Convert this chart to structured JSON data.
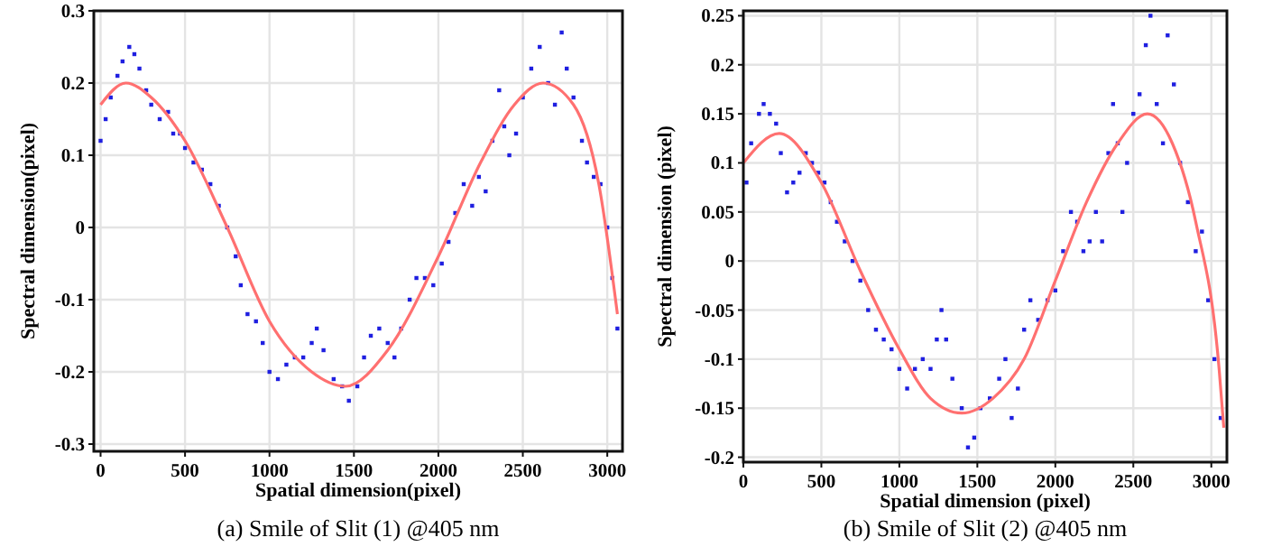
{
  "chart_data": [
    {
      "type": "scatter",
      "title": "(a) Smile of Slit (1) @405 nm",
      "xlabel": "Spatial dimension(pixel)",
      "ylabel": "Spectral dimension(pixel)",
      "xlim": [
        -40,
        3090
      ],
      "ylim": [
        -0.31,
        0.3
      ],
      "xticks": [
        0,
        500,
        1000,
        1500,
        2000,
        2500,
        3000
      ],
      "yticks": [
        -0.3,
        -0.2,
        -0.1,
        0,
        0.1,
        0.2,
        0.3
      ],
      "grid": true,
      "series": [
        {
          "marker": "square",
          "color": "#1f1fe0",
          "x": [
            0,
            30,
            60,
            100,
            130,
            170,
            200,
            230,
            270,
            300,
            350,
            400,
            430,
            470,
            500,
            550,
            600,
            650,
            700,
            750,
            800,
            830,
            870,
            920,
            960,
            1000,
            1050,
            1100,
            1150,
            1200,
            1250,
            1280,
            1320,
            1380,
            1430,
            1470,
            1520,
            1560,
            1600,
            1650,
            1700,
            1740,
            1780,
            1830,
            1870,
            1920,
            1970,
            2020,
            2060,
            2100,
            2150,
            2200,
            2240,
            2280,
            2320,
            2360,
            2390,
            2420,
            2460,
            2500,
            2550,
            2600,
            2650,
            2690,
            2730,
            2760,
            2800,
            2850,
            2880,
            2920,
            2960,
            3000,
            3030,
            3060
          ],
          "values": [
            0.12,
            0.15,
            0.18,
            0.21,
            0.23,
            0.25,
            0.24,
            0.22,
            0.19,
            0.17,
            0.15,
            0.16,
            0.13,
            0.13,
            0.11,
            0.09,
            0.08,
            0.06,
            0.03,
            0.0,
            -0.04,
            -0.08,
            -0.12,
            -0.13,
            -0.16,
            -0.2,
            -0.21,
            -0.19,
            -0.18,
            -0.18,
            -0.16,
            -0.14,
            -0.17,
            -0.21,
            -0.22,
            -0.24,
            -0.22,
            -0.18,
            -0.15,
            -0.14,
            -0.16,
            -0.18,
            -0.14,
            -0.1,
            -0.07,
            -0.07,
            -0.08,
            -0.05,
            -0.02,
            0.02,
            0.06,
            0.03,
            0.07,
            0.05,
            0.12,
            0.19,
            0.14,
            0.1,
            0.13,
            0.18,
            0.22,
            0.25,
            0.2,
            0.17,
            0.27,
            0.22,
            0.18,
            0.12,
            0.09,
            0.07,
            0.06,
            0.0,
            -0.07,
            -0.14
          ]
        },
        {
          "type": "line",
          "marker": "none",
          "line_style": "solid",
          "color": "#ff7070",
          "x": [
            0,
            150,
            300,
            500,
            750,
            1000,
            1250,
            1450,
            1700,
            2000,
            2250,
            2450,
            2620,
            2800,
            2950,
            3060
          ],
          "values": [
            0.17,
            0.2,
            0.18,
            0.12,
            0.0,
            -0.13,
            -0.2,
            -0.22,
            -0.17,
            -0.04,
            0.09,
            0.17,
            0.2,
            0.17,
            0.06,
            -0.12
          ]
        }
      ]
    },
    {
      "type": "scatter",
      "title": "(b) Smile of Slit (2) @405 nm",
      "xlabel": "Spatial dimension (pixel)",
      "ylabel": "Spectral dimension (pixel)",
      "xlim": [
        0,
        3100
      ],
      "ylim": [
        -0.205,
        0.255
      ],
      "xticks": [
        0,
        500,
        1000,
        1500,
        2000,
        2500,
        3000
      ],
      "yticks": [
        -0.2,
        -0.15,
        -0.1,
        -0.05,
        0,
        0.05,
        0.1,
        0.15,
        0.2,
        0.25
      ],
      "grid": true,
      "series": [
        {
          "marker": "square",
          "color": "#1f1fe0",
          "x": [
            20,
            50,
            100,
            130,
            170,
            210,
            240,
            280,
            320,
            360,
            400,
            440,
            480,
            520,
            560,
            600,
            650,
            700,
            750,
            800,
            850,
            900,
            950,
            1000,
            1050,
            1100,
            1150,
            1200,
            1240,
            1270,
            1300,
            1340,
            1400,
            1440,
            1480,
            1520,
            1580,
            1640,
            1680,
            1720,
            1760,
            1800,
            1840,
            1890,
            1950,
            2000,
            2050,
            2100,
            2140,
            2180,
            2220,
            2260,
            2300,
            2340,
            2370,
            2400,
            2430,
            2460,
            2500,
            2540,
            2580,
            2610,
            2650,
            2690,
            2720,
            2760,
            2800,
            2850,
            2900,
            2940,
            2980,
            3020,
            3060
          ],
          "values": [
            0.08,
            0.12,
            0.15,
            0.16,
            0.15,
            0.14,
            0.11,
            0.07,
            0.08,
            0.09,
            0.11,
            0.1,
            0.09,
            0.08,
            0.06,
            0.04,
            0.02,
            0.0,
            -0.02,
            -0.05,
            -0.07,
            -0.08,
            -0.09,
            -0.11,
            -0.13,
            -0.11,
            -0.1,
            -0.11,
            -0.08,
            -0.05,
            -0.08,
            -0.12,
            -0.15,
            -0.19,
            -0.18,
            -0.15,
            -0.14,
            -0.12,
            -0.1,
            -0.16,
            -0.13,
            -0.07,
            -0.04,
            -0.06,
            -0.04,
            -0.03,
            0.01,
            0.05,
            0.04,
            0.01,
            0.02,
            0.05,
            0.02,
            0.11,
            0.16,
            0.12,
            0.05,
            0.1,
            0.15,
            0.17,
            0.22,
            0.25,
            0.16,
            0.12,
            0.23,
            0.18,
            0.1,
            0.06,
            0.01,
            0.03,
            -0.04,
            -0.1,
            -0.16
          ]
        },
        {
          "type": "line",
          "marker": "none",
          "line_style": "solid",
          "color": "#ff7070",
          "x": [
            0,
            230,
            500,
            750,
            1000,
            1200,
            1400,
            1600,
            1800,
            2000,
            2200,
            2400,
            2590,
            2750,
            2900,
            3050,
            3080
          ],
          "values": [
            0.1,
            0.13,
            0.08,
            -0.01,
            -0.09,
            -0.14,
            -0.155,
            -0.14,
            -0.1,
            -0.02,
            0.06,
            0.12,
            0.15,
            0.12,
            0.04,
            -0.11,
            -0.17
          ]
        }
      ]
    }
  ]
}
